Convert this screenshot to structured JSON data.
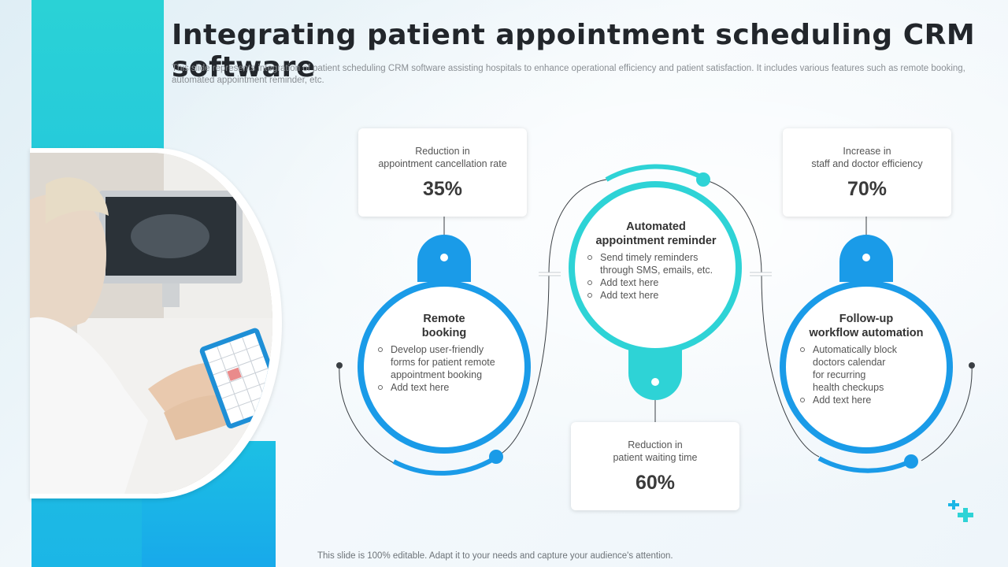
{
  "title": "Integrating patient appointment scheduling CRM software",
  "subtitle": "This slide represents integration of patient scheduling CRM software assisting hospitals to enhance operational efficiency and patient satisfaction. It includes various features such as remote booking, automated appointment reminder, etc.",
  "footer": "This slide is 100% editable. Adapt it to your needs and capture your audience's attention.",
  "colors": {
    "blue": "#1a9be8",
    "teal": "#2ed3d6",
    "connector": "#3a3f44"
  },
  "stats": {
    "cancellation": {
      "label": "Reduction in\nappointment cancellation rate",
      "value": "35%"
    },
    "waiting": {
      "label": "Reduction in\npatient waiting time",
      "value": "60%"
    },
    "efficiency": {
      "label": "Increase in\nstaff and doctor efficiency",
      "value": "70%"
    }
  },
  "features": {
    "remote": {
      "title": "Remote\nbooking",
      "items": [
        "Develop user-friendly\nforms for patient remote\nappointment booking",
        "Add text here"
      ]
    },
    "reminder": {
      "title": "Automated\nappointment reminder",
      "items": [
        "Send timely reminders\nthrough SMS, emails, etc.",
        "Add text here",
        "Add text here"
      ]
    },
    "followup": {
      "title": "Follow-up\nworkflow automation",
      "items": [
        "Automatically block\ndoctors calendar\nfor recurring\nhealth checkups",
        "Add text here"
      ]
    }
  },
  "icons": {
    "photo": "doctor-tablet-photo",
    "decoration": "medical-plus-icon"
  }
}
